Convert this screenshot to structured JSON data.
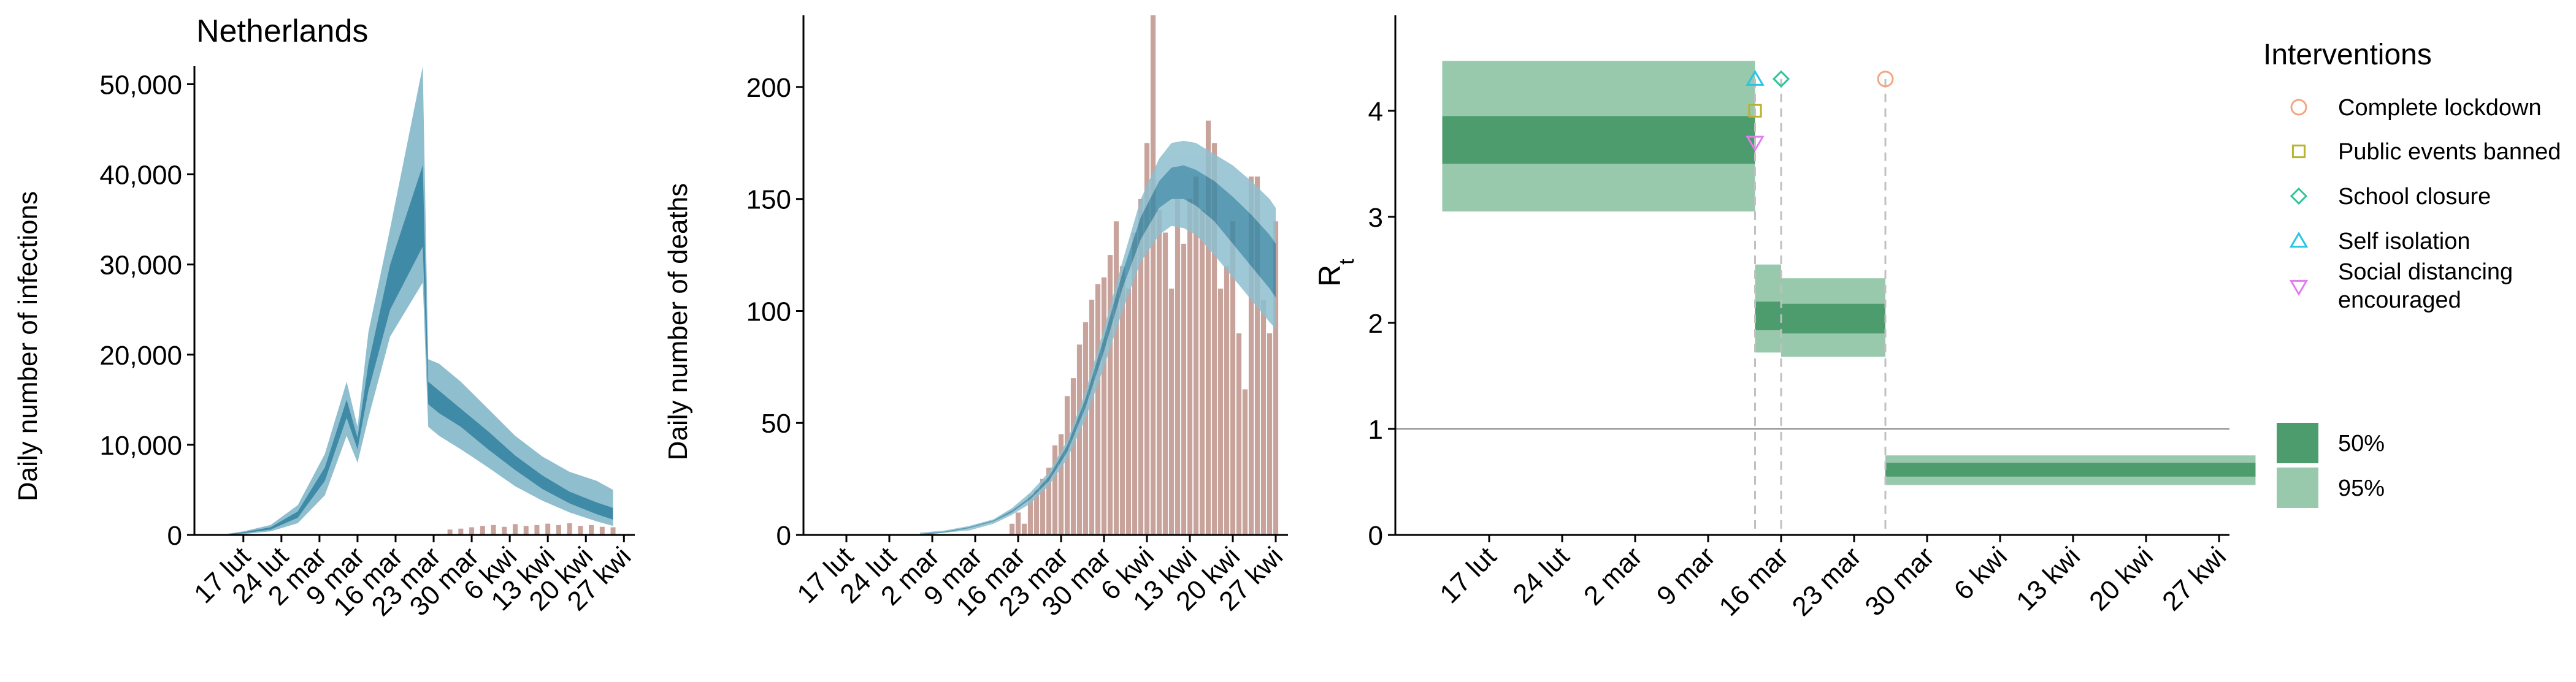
{
  "colors": {
    "blue_band_95": "#8fbfcf",
    "blue_band_50": "#3f8aa6",
    "observed_bar": "#c8a39b",
    "green_50": "#4c9c6d",
    "green_95": "#99c9ad",
    "gray_dash": "#c0c0c0",
    "one_line": "#888888",
    "int_lockdown": "#f4a582",
    "int_public": "#b8b32e",
    "int_school": "#2ec49b",
    "int_self": "#27c3e8",
    "int_social": "#e27cf0"
  },
  "chart_data": [
    {
      "type": "area",
      "title": "Netherlands",
      "xlabel": "",
      "ylabel": "Daily number of infections",
      "ylim": [
        0,
        52000
      ],
      "yticks": [
        0,
        10000,
        20000,
        30000,
        40000,
        50000
      ],
      "ytick_labels": [
        "0",
        "10,000",
        "20,000",
        "30,000",
        "40,000",
        "50,000"
      ],
      "xticks": [
        0,
        7,
        14,
        21,
        28,
        35,
        42,
        49,
        56,
        63,
        70
      ],
      "xtick_labels": [
        "17 lut",
        "24 lut",
        "2 mar",
        "9 mar",
        "16 mar",
        "23 mar",
        "30 mar",
        "6 kwi",
        "13 kwi",
        "20 kwi",
        "27 kwi"
      ],
      "x_start_label": "17 lut",
      "xlim": [
        -9,
        72
      ],
      "series": [
        {
          "band": "95%",
          "x": [
            -4,
            0,
            5,
            10,
            15,
            19,
            21,
            23,
            27,
            33,
            34,
            36,
            40,
            45,
            50,
            55,
            60,
            65,
            68
          ],
          "lower": [
            0,
            100,
            400,
            1300,
            4400,
            11000,
            8000,
            13000,
            22000,
            28000,
            12000,
            11000,
            9500,
            7500,
            5400,
            3800,
            2500,
            1500,
            1000
          ],
          "upper": [
            20,
            400,
            1100,
            3300,
            9000,
            17000,
            12000,
            22500,
            34000,
            52000,
            19500,
            19000,
            17000,
            14000,
            11000,
            8700,
            7000,
            6000,
            5000
          ]
        },
        {
          "band": "50%",
          "x": [
            -4,
            0,
            5,
            10,
            15,
            19,
            21,
            23,
            27,
            33,
            34,
            36,
            40,
            45,
            50,
            55,
            60,
            65,
            68
          ],
          "lower": [
            0,
            200,
            600,
            1900,
            6000,
            13000,
            9500,
            16000,
            25000,
            32000,
            14500,
            13500,
            12000,
            9500,
            7200,
            5100,
            3500,
            2300,
            1700
          ],
          "upper": [
            10,
            300,
            850,
            2600,
            7500,
            15000,
            10800,
            19000,
            30000,
            41000,
            17000,
            16000,
            14000,
            11500,
            8800,
            6600,
            4800,
            3600,
            3000
          ]
        }
      ],
      "observed": {
        "x": [
          38,
          40,
          42,
          44,
          46,
          48,
          50,
          52,
          54,
          56,
          58,
          60,
          62,
          64,
          66,
          68
        ],
        "values": [
          600,
          700,
          850,
          1000,
          1100,
          900,
          1200,
          1000,
          1100,
          1250,
          1100,
          1300,
          1000,
          1100,
          900,
          850
        ]
      }
    },
    {
      "type": "bar",
      "xlabel": "",
      "ylabel": "Daily number of deaths",
      "ylim": [
        0,
        232
      ],
      "yticks": [
        0,
        50,
        100,
        150,
        200
      ],
      "ytick_labels": [
        "0",
        "50",
        "100",
        "150",
        "200"
      ],
      "xticks": [
        0,
        7,
        14,
        21,
        28,
        35,
        42,
        49,
        56,
        63,
        70
      ],
      "xtick_labels": [
        "17 lut",
        "24 lut",
        "2 mar",
        "9 mar",
        "16 mar",
        "23 mar",
        "30 mar",
        "6 kwi",
        "13 kwi",
        "20 kwi",
        "27 kwi"
      ],
      "xlim": [
        -7,
        72
      ],
      "observed": {
        "x": [
          27,
          28,
          29,
          30,
          31,
          32,
          33,
          34,
          35,
          36,
          37,
          38,
          39,
          40,
          41,
          42,
          43,
          44,
          45,
          46,
          47,
          48,
          49,
          50,
          51,
          52,
          53,
          54,
          55,
          56,
          57,
          58,
          59,
          60,
          61,
          62,
          63,
          64,
          65,
          66,
          67,
          68,
          69,
          70
        ],
        "values": [
          5,
          10,
          5,
          18,
          20,
          25,
          30,
          40,
          45,
          62,
          70,
          85,
          95,
          105,
          112,
          115,
          125,
          140,
          120,
          110,
          135,
          150,
          175,
          235,
          145,
          135,
          110,
          150,
          130,
          150,
          160,
          145,
          185,
          175,
          110,
          120,
          140,
          90,
          65,
          160,
          160,
          105,
          90,
          140
        ]
      },
      "series": [
        {
          "band": "95%",
          "x": [
            12,
            16,
            20,
            24,
            27,
            30,
            33,
            36,
            39,
            42,
            45,
            48,
            51,
            53,
            55,
            57,
            60,
            63,
            66,
            69,
            70
          ],
          "lower": [
            0,
            1,
            2,
            5,
            9,
            14,
            22,
            34,
            52,
            75,
            100,
            122,
            134,
            138,
            137,
            134,
            125,
            115,
            105,
            95,
            92
          ],
          "upper": [
            1,
            2,
            4,
            7,
            12,
            19,
            28,
            42,
            64,
            92,
            122,
            150,
            168,
            175,
            176,
            175,
            170,
            165,
            158,
            150,
            146
          ]
        },
        {
          "band": "50%",
          "x": [
            12,
            16,
            20,
            24,
            27,
            30,
            33,
            36,
            39,
            42,
            45,
            48,
            51,
            53,
            55,
            57,
            60,
            63,
            66,
            69,
            70
          ],
          "lower": [
            0,
            1,
            3,
            6,
            10,
            16,
            24,
            37,
            57,
            82,
            110,
            132,
            146,
            150,
            150,
            147,
            140,
            130,
            120,
            110,
            106
          ],
          "upper": [
            0.5,
            1.5,
            3.5,
            6.5,
            11,
            17,
            26,
            40,
            61,
            88,
            117,
            142,
            158,
            164,
            165,
            163,
            158,
            151,
            143,
            134,
            130
          ]
        }
      ]
    },
    {
      "type": "area",
      "xlabel": "",
      "ylabel_main": "R",
      "ylabel_sub": "t",
      "ylim": [
        0,
        4.9
      ],
      "yticks": [
        0,
        1,
        2,
        3,
        4
      ],
      "ytick_labels": [
        "0",
        "1",
        "2",
        "3",
        "4"
      ],
      "reference_line": 1,
      "xticks": [
        0,
        7,
        14,
        21,
        28,
        35,
        42,
        49,
        56,
        63,
        70
      ],
      "xtick_labels": [
        "17 lut",
        "24 lut",
        "2 mar",
        "9 mar",
        "16 mar",
        "23 mar",
        "30 mar",
        "6 kwi",
        "13 kwi",
        "20 kwi",
        "27 kwi"
      ],
      "xlim": [
        -9,
        71
      ],
      "segments": [
        {
          "x0": -4.5,
          "x1": 25.5,
          "lo95": 3.05,
          "hi95": 4.47,
          "lo50": 3.5,
          "hi50": 3.95
        },
        {
          "x0": 25.5,
          "x1": 28.0,
          "lo95": 1.72,
          "hi95": 2.55,
          "lo50": 1.93,
          "hi50": 2.2
        },
        {
          "x0": 28.0,
          "x1": 38.0,
          "lo95": 1.68,
          "hi95": 2.42,
          "lo50": 1.9,
          "hi50": 2.18
        },
        {
          "x0": 38.0,
          "x1": 73.5,
          "lo95": 0.47,
          "hi95": 0.75,
          "lo50": 0.55,
          "hi50": 0.68
        }
      ],
      "intervention_lines": [
        25.5,
        28.0,
        38.0
      ],
      "intervention_markers": [
        {
          "x": 25.5,
          "y": 4.3,
          "kind": "self"
        },
        {
          "x": 25.5,
          "y": 4.0,
          "kind": "public"
        },
        {
          "x": 25.5,
          "y": 3.7,
          "kind": "social"
        },
        {
          "x": 28.0,
          "y": 4.3,
          "kind": "school"
        },
        {
          "x": 38.0,
          "y": 4.3,
          "kind": "lockdown"
        }
      ]
    }
  ],
  "legend": {
    "title": "Interventions",
    "items": [
      {
        "kind": "lockdown",
        "label": "Complete lockdown"
      },
      {
        "kind": "public",
        "label": "Public events banned"
      },
      {
        "kind": "school",
        "label": "School closure"
      },
      {
        "kind": "self",
        "label": "Self isolation"
      },
      {
        "kind": "social",
        "label": "Social distancing",
        "label2": " encouraged"
      }
    ],
    "bands": [
      {
        "label": "50%"
      },
      {
        "label": "95%"
      }
    ]
  }
}
